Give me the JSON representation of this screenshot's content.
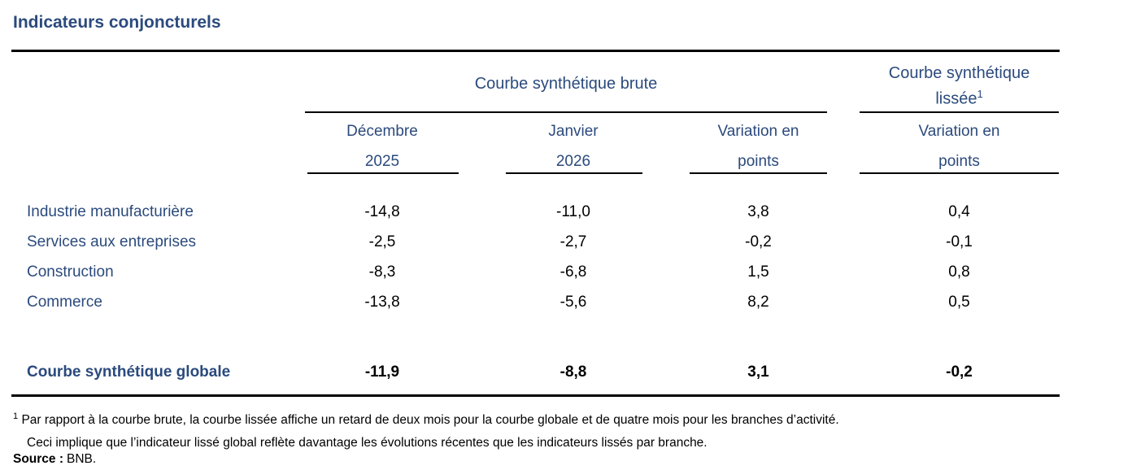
{
  "title": "Indicateurs conjoncturels",
  "colors": {
    "accent_blue": "#2b4a7d",
    "text_black": "#000000",
    "rule_black": "#000000",
    "background": "#ffffff"
  },
  "table": {
    "groups": [
      {
        "label": "Courbe synthétique brute"
      },
      {
        "label_line1": "Courbe synthétique",
        "label_line2": "lissée",
        "footnote_marker": "1"
      }
    ],
    "columns": [
      {
        "line1": "Décembre",
        "line2": "2025"
      },
      {
        "line1": "Janvier",
        "line2": "2026"
      },
      {
        "line1": "Variation en",
        "line2": "points"
      },
      {
        "line1": "Variation en",
        "line2": "points"
      }
    ],
    "rows": [
      {
        "label": "Industrie manufacturière",
        "values": [
          "-14,8",
          "-11,0",
          "3,8",
          "0,4"
        ]
      },
      {
        "label": "Services aux entreprises",
        "values": [
          "-2,5",
          "-2,7",
          "-0,2",
          "-0,1"
        ]
      },
      {
        "label": "Construction",
        "values": [
          "-8,3",
          "-6,8",
          "1,5",
          "0,8"
        ]
      },
      {
        "label": "Commerce",
        "values": [
          "-13,8",
          "-5,6",
          "8,2",
          "0,5"
        ]
      }
    ],
    "total_row": {
      "label": "Courbe synthétique globale",
      "values": [
        "-11,9",
        "-8,8",
        "3,1",
        "-0,2"
      ]
    }
  },
  "footnote": {
    "marker": "1",
    "line1": "Par rapport à la courbe brute, la courbe lissée affiche un retard de deux mois pour la courbe globale et de quatre mois pour les branches d’activité.",
    "line2": "Ceci implique que l’indicateur lissé global reflète davantage les évolutions récentes que les indicateurs lissés par branche."
  },
  "source": {
    "label": "Source :",
    "value": "BNB."
  }
}
